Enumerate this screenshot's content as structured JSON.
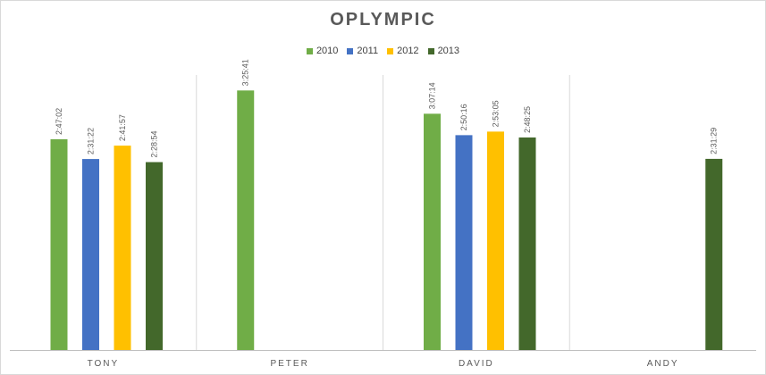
{
  "chart_data": {
    "type": "bar",
    "title": "OPLYMPIC",
    "xlabel": "",
    "ylabel": "",
    "categories": [
      "TONY",
      "PETER",
      "DAVID",
      "ANDY"
    ],
    "series": [
      {
        "name": "2010",
        "color": "#70ad47",
        "values": [
          10022,
          12341,
          11234,
          null
        ],
        "labels": [
          "2:47:02",
          "3:25:41",
          "3:07:14",
          ""
        ]
      },
      {
        "name": "2011",
        "color": "#4472c4",
        "values": [
          9082,
          null,
          10216,
          null
        ],
        "labels": [
          "2:31:22",
          "",
          "2:50:16",
          ""
        ]
      },
      {
        "name": "2012",
        "color": "#ffc000",
        "values": [
          9717,
          null,
          10385,
          null
        ],
        "labels": [
          "2:41:57",
          "",
          "2:53:05",
          ""
        ]
      },
      {
        "name": "2013",
        "color": "#43682b",
        "values": [
          8934,
          null,
          10105,
          9089
        ],
        "labels": [
          "2:28:54",
          "",
          "2:48:25",
          "2:31:29"
        ]
      }
    ],
    "ylim": [
      0,
      16600
    ],
    "grid": false,
    "legend_position": "top"
  }
}
